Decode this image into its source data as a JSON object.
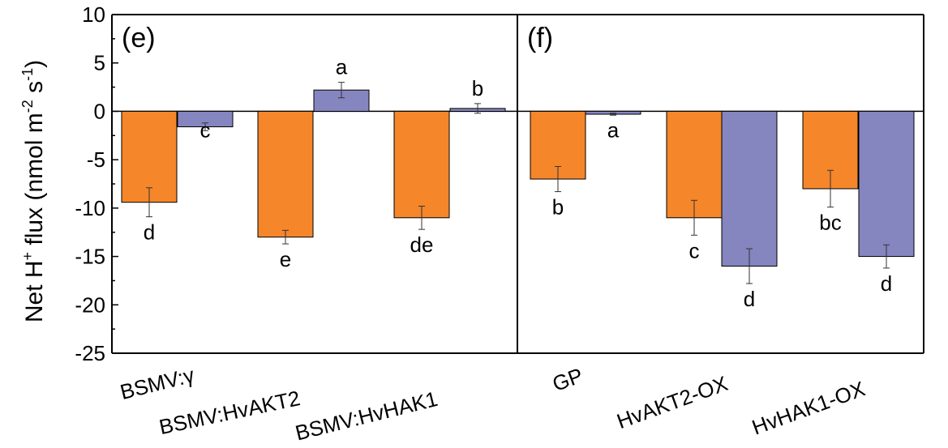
{
  "chart_data": [
    {
      "type": "bar",
      "panel_label": "(e)",
      "ylabel_main": "Net H",
      "ylabel_sup1": "+",
      "ylabel_mid": " flux (nmol m",
      "ylabel_sup2": "-2",
      "ylabel_mid2": " s",
      "ylabel_sup3": "-1",
      "ylabel_end": ")",
      "ylim": [
        -25,
        10
      ],
      "yticks": [
        10,
        5,
        0,
        -5,
        -10,
        -15,
        -20,
        -25
      ],
      "categories": [
        "BSMV:γ",
        "BSMV:HvAKT2",
        "BSMV:HvHAK1"
      ],
      "colors": [
        "#f5862a",
        "#8585c0"
      ],
      "series": [
        {
          "values": [
            -9.4,
            -13.0,
            -11.0
          ],
          "errors": [
            1.5,
            0.7,
            1.2
          ],
          "letters": [
            "d",
            "e",
            "de"
          ]
        },
        {
          "values": [
            -1.6,
            2.2,
            0.3
          ],
          "errors": [
            0.4,
            0.8,
            0.5
          ],
          "letters": [
            "c",
            "a",
            "b"
          ]
        }
      ]
    },
    {
      "type": "bar",
      "panel_label": "(f)",
      "ylim": [
        -25,
        10
      ],
      "categories": [
        "GP",
        "HvAKT2-OX",
        "HvHAK1-OX"
      ],
      "colors": [
        "#f5862a",
        "#8585c0"
      ],
      "series": [
        {
          "values": [
            -7.0,
            -11.0,
            -8.0
          ],
          "errors": [
            1.3,
            1.8,
            1.9
          ],
          "letters": [
            "b",
            "c",
            "bc"
          ]
        },
        {
          "values": [
            -0.3,
            -16.0,
            -15.0
          ],
          "errors": [
            0.1,
            1.8,
            1.2
          ],
          "letters": [
            "a",
            "d",
            "d"
          ]
        }
      ]
    }
  ]
}
